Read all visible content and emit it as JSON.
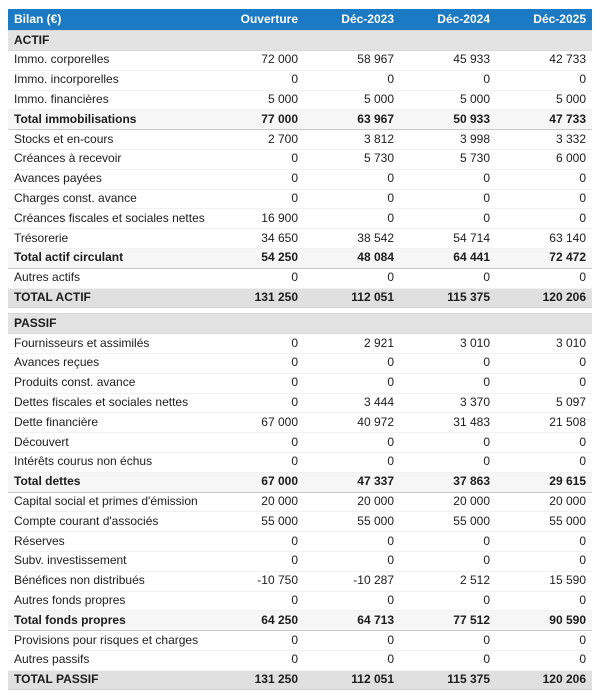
{
  "table": {
    "title": "Bilan (€)",
    "columns": [
      "Ouverture",
      "Déc-2023",
      "Déc-2024",
      "Déc-2025"
    ],
    "colors": {
      "header_bg": "#1b7ac3",
      "header_text": "#ffffff",
      "section_bg": "#e3e3e3",
      "subtotal_bg": "#f6f6f6",
      "grandtotal_bg": "#e0e0e0"
    },
    "rows": [
      {
        "type": "section",
        "label": "ACTIF",
        "values": [
          "",
          "",
          "",
          ""
        ]
      },
      {
        "type": "data",
        "label": "Immo. corporelles",
        "values": [
          "72 000",
          "58 967",
          "45 933",
          "42 733"
        ]
      },
      {
        "type": "data",
        "label": "Immo. incorporelles",
        "values": [
          "0",
          "0",
          "0",
          "0"
        ]
      },
      {
        "type": "data",
        "label": "Immo. financières",
        "values": [
          "5 000",
          "5 000",
          "5 000",
          "5 000"
        ]
      },
      {
        "type": "subtotal",
        "label": "Total immobilisations",
        "values": [
          "77 000",
          "63 967",
          "50 933",
          "47 733"
        ]
      },
      {
        "type": "data",
        "label": "Stocks et en-cours",
        "values": [
          "2 700",
          "3 812",
          "3 998",
          "3 332"
        ]
      },
      {
        "type": "data",
        "label": "Créances à recevoir",
        "values": [
          "0",
          "5 730",
          "5 730",
          "6 000"
        ]
      },
      {
        "type": "data",
        "label": "Avances payées",
        "values": [
          "0",
          "0",
          "0",
          "0"
        ]
      },
      {
        "type": "data",
        "label": "Charges const. avance",
        "values": [
          "0",
          "0",
          "0",
          "0"
        ]
      },
      {
        "type": "data",
        "label": "Créances fiscales et sociales nettes",
        "values": [
          "16 900",
          "0",
          "0",
          "0"
        ]
      },
      {
        "type": "data",
        "label": "Trésorerie",
        "values": [
          "34 650",
          "38 542",
          "54 714",
          "63 140"
        ]
      },
      {
        "type": "subtotal",
        "label": "Total actif circulant",
        "values": [
          "54 250",
          "48 084",
          "64 441",
          "72 472"
        ]
      },
      {
        "type": "data",
        "label": "Autres actifs",
        "values": [
          "0",
          "0",
          "0",
          "0"
        ]
      },
      {
        "type": "grandtotal",
        "label": "TOTAL ACTIF",
        "values": [
          "131 250",
          "112 051",
          "115 375",
          "120 206"
        ]
      },
      {
        "type": "spacer",
        "label": "",
        "values": [
          "",
          "",
          "",
          ""
        ]
      },
      {
        "type": "section",
        "label": "PASSIF",
        "values": [
          "",
          "",
          "",
          ""
        ]
      },
      {
        "type": "data",
        "label": "Fournisseurs et assimilés",
        "values": [
          "0",
          "2 921",
          "3 010",
          "3 010"
        ]
      },
      {
        "type": "data",
        "label": "Avances reçues",
        "values": [
          "0",
          "0",
          "0",
          "0"
        ]
      },
      {
        "type": "data",
        "label": "Produits const. avance",
        "values": [
          "0",
          "0",
          "0",
          "0"
        ]
      },
      {
        "type": "data",
        "label": "Dettes fiscales et sociales nettes",
        "values": [
          "0",
          "3 444",
          "3 370",
          "5 097"
        ]
      },
      {
        "type": "data",
        "label": "Dette financière",
        "values": [
          "67 000",
          "40 972",
          "31 483",
          "21 508"
        ]
      },
      {
        "type": "data",
        "label": "Découvert",
        "values": [
          "0",
          "0",
          "0",
          "0"
        ]
      },
      {
        "type": "data",
        "label": "Intérêts courus non échus",
        "values": [
          "0",
          "0",
          "0",
          "0"
        ]
      },
      {
        "type": "subtotal",
        "label": "Total dettes",
        "values": [
          "67 000",
          "47 337",
          "37 863",
          "29 615"
        ]
      },
      {
        "type": "data",
        "label": "Capital social et primes d'émission",
        "values": [
          "20 000",
          "20 000",
          "20 000",
          "20 000"
        ]
      },
      {
        "type": "data",
        "label": "Compte courant d'associés",
        "values": [
          "55 000",
          "55 000",
          "55 000",
          "55 000"
        ]
      },
      {
        "type": "data",
        "label": "Réserves",
        "values": [
          "0",
          "0",
          "0",
          "0"
        ]
      },
      {
        "type": "data",
        "label": "Subv. investissement",
        "values": [
          "0",
          "0",
          "0",
          "0"
        ]
      },
      {
        "type": "data",
        "label": "Bénéfices non distribués",
        "values": [
          "-10 750",
          "-10 287",
          "2 512",
          "15 590"
        ]
      },
      {
        "type": "data",
        "label": "Autres fonds propres",
        "values": [
          "0",
          "0",
          "0",
          "0"
        ]
      },
      {
        "type": "subtotal",
        "label": "Total fonds propres",
        "values": [
          "64 250",
          "64 713",
          "77 512",
          "90 590"
        ]
      },
      {
        "type": "data",
        "label": "Provisions pour risques et charges",
        "values": [
          "0",
          "0",
          "0",
          "0"
        ]
      },
      {
        "type": "data",
        "label": "Autres passifs",
        "values": [
          "0",
          "0",
          "0",
          "0"
        ]
      },
      {
        "type": "grandtotal",
        "label": "TOTAL PASSIF",
        "values": [
          "131 250",
          "112 051",
          "115 375",
          "120 206"
        ]
      }
    ]
  }
}
